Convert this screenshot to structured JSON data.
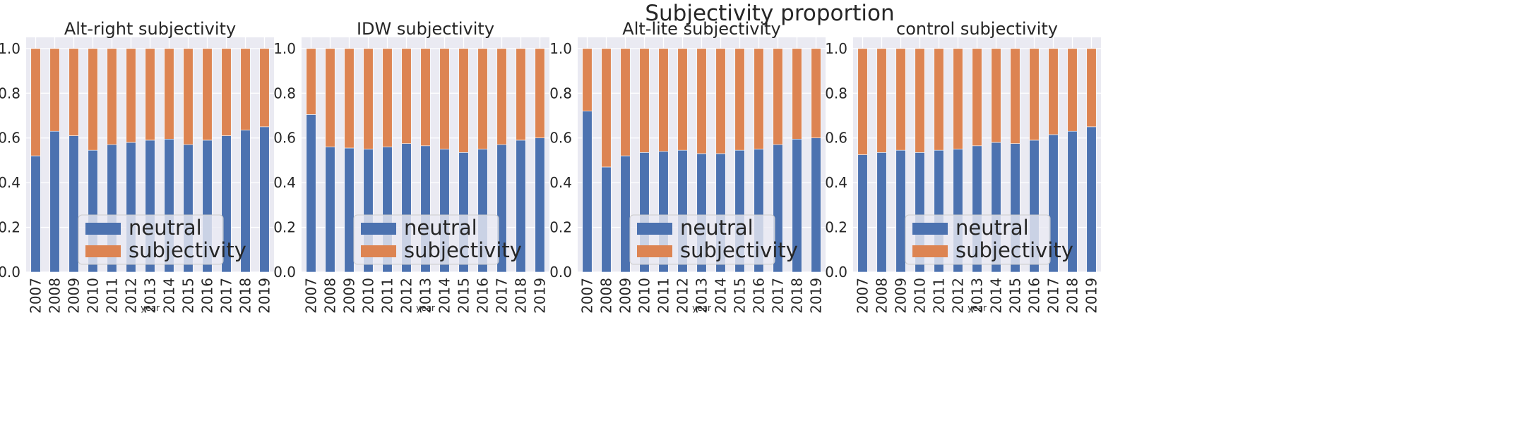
{
  "figure": {
    "suptitle": "Subjectivity proportion"
  },
  "colors": {
    "neutral": "#4c72b0",
    "subjectivity": "#dd8452",
    "plot_bg": "#eaeaf2",
    "grid": "#ffffff"
  },
  "chart_data": [
    {
      "type": "bar",
      "stacked": true,
      "title": "Alt-right subjectivity",
      "xlabel": "year",
      "ylabel": "",
      "ylim": [
        0,
        1.05
      ],
      "yticks": [
        "0.0",
        "0.2",
        "0.4",
        "0.6",
        "0.8",
        "1.0"
      ],
      "categories": [
        "2007",
        "2008",
        "2009",
        "2010",
        "2011",
        "2012",
        "2013",
        "2014",
        "2015",
        "2016",
        "2017",
        "2018",
        "2019"
      ],
      "series": [
        {
          "name": "neutral",
          "values": [
            0.52,
            0.63,
            0.61,
            0.545,
            0.57,
            0.58,
            0.59,
            0.595,
            0.57,
            0.59,
            0.61,
            0.635,
            0.65
          ]
        },
        {
          "name": "subjectivity",
          "values": [
            0.48,
            0.37,
            0.39,
            0.455,
            0.43,
            0.42,
            0.41,
            0.405,
            0.43,
            0.41,
            0.39,
            0.365,
            0.35
          ]
        }
      ],
      "legend": {
        "position": "lower-center",
        "entries": [
          "neutral",
          "subjectivity"
        ]
      }
    },
    {
      "type": "bar",
      "stacked": true,
      "title": "IDW subjectivity",
      "xlabel": "year",
      "ylabel": "",
      "ylim": [
        0,
        1.05
      ],
      "yticks": [
        "0.0",
        "0.2",
        "0.4",
        "0.6",
        "0.8",
        "1.0"
      ],
      "categories": [
        "2007",
        "2008",
        "2009",
        "2010",
        "2011",
        "2012",
        "2013",
        "2014",
        "2015",
        "2016",
        "2017",
        "2018",
        "2019"
      ],
      "series": [
        {
          "name": "neutral",
          "values": [
            0.705,
            0.56,
            0.555,
            0.55,
            0.56,
            0.575,
            0.565,
            0.55,
            0.535,
            0.55,
            0.57,
            0.59,
            0.6
          ]
        },
        {
          "name": "subjectivity",
          "values": [
            0.295,
            0.44,
            0.445,
            0.45,
            0.44,
            0.425,
            0.435,
            0.45,
            0.465,
            0.45,
            0.43,
            0.41,
            0.4
          ]
        }
      ],
      "legend": {
        "position": "lower-center",
        "entries": [
          "neutral",
          "subjectivity"
        ]
      }
    },
    {
      "type": "bar",
      "stacked": true,
      "title": "Alt-lite subjectivity",
      "xlabel": "year",
      "ylabel": "",
      "ylim": [
        0,
        1.05
      ],
      "yticks": [
        "0.0",
        "0.2",
        "0.4",
        "0.6",
        "0.8",
        "1.0"
      ],
      "categories": [
        "2007",
        "2008",
        "2009",
        "2010",
        "2011",
        "2012",
        "2013",
        "2014",
        "2015",
        "2016",
        "2017",
        "2018",
        "2019"
      ],
      "series": [
        {
          "name": "neutral",
          "values": [
            0.72,
            0.47,
            0.52,
            0.535,
            0.54,
            0.545,
            0.53,
            0.53,
            0.545,
            0.55,
            0.57,
            0.595,
            0.6
          ]
        },
        {
          "name": "subjectivity",
          "values": [
            0.28,
            0.53,
            0.48,
            0.465,
            0.46,
            0.455,
            0.47,
            0.47,
            0.455,
            0.45,
            0.43,
            0.405,
            0.4
          ]
        }
      ],
      "legend": {
        "position": "lower-center",
        "entries": [
          "neutral",
          "subjectivity"
        ]
      }
    },
    {
      "type": "bar",
      "stacked": true,
      "title": "control subjectivity",
      "xlabel": "year",
      "ylabel": "",
      "ylim": [
        0,
        1.05
      ],
      "yticks": [
        "0.0",
        "0.2",
        "0.4",
        "0.6",
        "0.8",
        "1.0"
      ],
      "categories": [
        "2007",
        "2008",
        "2009",
        "2010",
        "2011",
        "2012",
        "2013",
        "2014",
        "2015",
        "2016",
        "2017",
        "2018",
        "2019"
      ],
      "series": [
        {
          "name": "neutral",
          "values": [
            0.525,
            0.535,
            0.545,
            0.535,
            0.545,
            0.55,
            0.565,
            0.58,
            0.575,
            0.59,
            0.615,
            0.63,
            0.65
          ]
        },
        {
          "name": "subjectivity",
          "values": [
            0.475,
            0.465,
            0.455,
            0.465,
            0.455,
            0.45,
            0.435,
            0.42,
            0.425,
            0.41,
            0.385,
            0.37,
            0.35
          ]
        }
      ],
      "legend": {
        "position": "lower-center",
        "entries": [
          "neutral",
          "subjectivity"
        ]
      }
    }
  ]
}
